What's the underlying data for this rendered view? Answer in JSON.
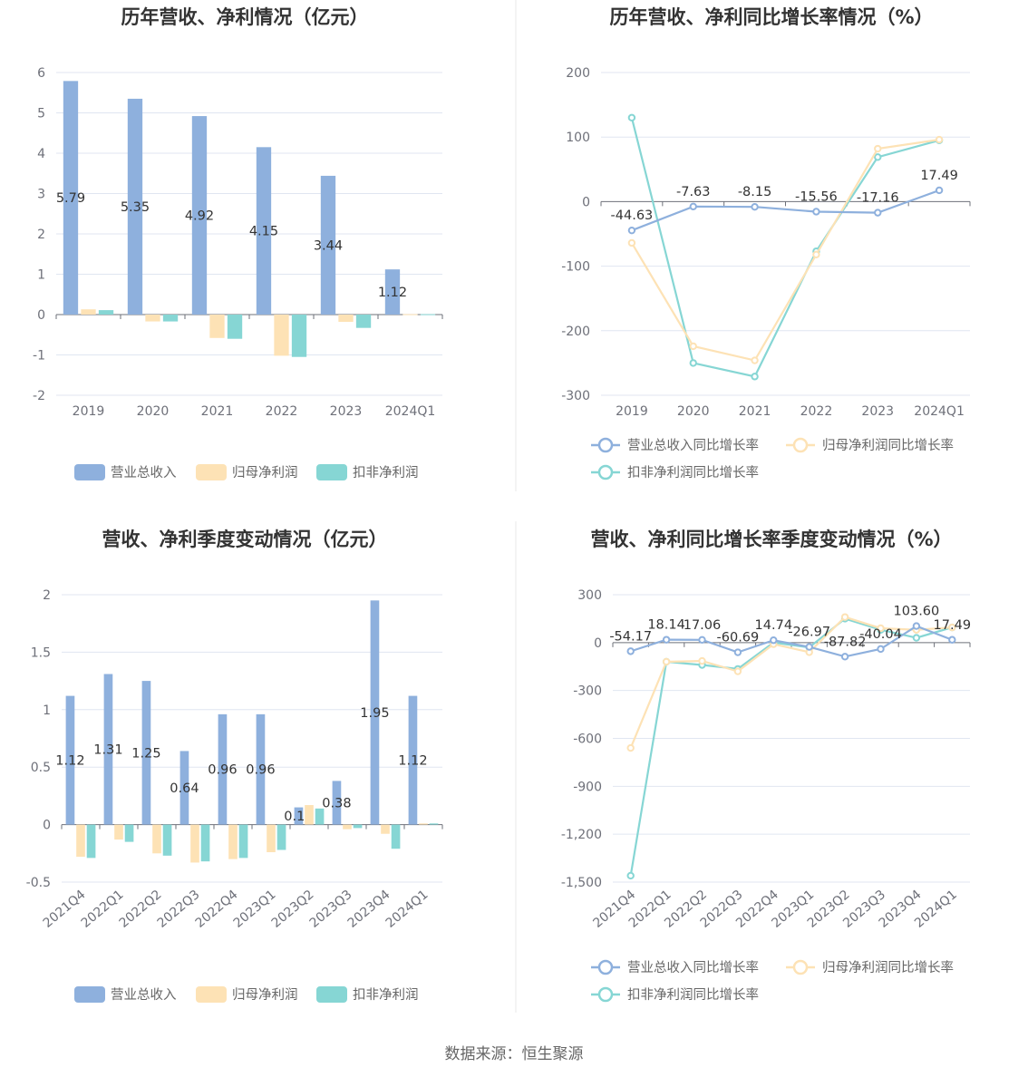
{
  "source": "数据来源：恒生聚源",
  "colors": {
    "revenue": "#8eb0dd",
    "profit": "#fde2b5",
    "nonrecurring": "#86d6d4",
    "grid": "#e0e6f1",
    "axis": "#6e7079"
  },
  "chart_data": [
    {
      "id": "annual_amount",
      "type": "bar",
      "title": "历年营收、净利情况（亿元）",
      "categories": [
        "2019",
        "2020",
        "2021",
        "2022",
        "2023",
        "2024Q1"
      ],
      "yticks": [
        -2,
        -1,
        0,
        1,
        2,
        3,
        4,
        5,
        6
      ],
      "ylim": [
        -2,
        6
      ],
      "series": [
        {
          "name": "营业总收入",
          "values": [
            5.79,
            5.35,
            4.92,
            4.15,
            3.44,
            1.12
          ],
          "labels": [
            "5.79",
            "5.35",
            "4.92",
            "4.15",
            "3.44",
            "1.12"
          ]
        },
        {
          "name": "归母净利润",
          "values": [
            0.13,
            -0.17,
            -0.58,
            -1.02,
            -0.18,
            0.01
          ]
        },
        {
          "name": "扣非净利润",
          "values": [
            0.11,
            -0.17,
            -0.6,
            -1.05,
            -0.33,
            0.01
          ]
        }
      ],
      "legend": [
        "营业总收入",
        "归母净利润",
        "扣非净利润"
      ]
    },
    {
      "id": "annual_growth",
      "type": "line",
      "title": "历年营收、净利同比增长率情况（%）",
      "categories": [
        "2019",
        "2020",
        "2021",
        "2022",
        "2023",
        "2024Q1"
      ],
      "yticks": [
        -300,
        -200,
        -100,
        0,
        100,
        200
      ],
      "ylim": [
        -300,
        200
      ],
      "series": [
        {
          "name": "营业总收入同比增长率",
          "values": [
            -44.63,
            -7.63,
            -8.15,
            -15.56,
            -17.16,
            17.49
          ],
          "labels": [
            "-44.63",
            "-7.63",
            "-8.15",
            "-15.56",
            "-17.16",
            "17.49"
          ]
        },
        {
          "name": "归母净利润同比增长率",
          "values": [
            -64,
            -224,
            -246,
            -82,
            82,
            96
          ]
        },
        {
          "name": "扣非净利润同比增长率",
          "values": [
            130,
            -250,
            -271,
            -77,
            69,
            95
          ]
        }
      ],
      "legend": [
        "营业总收入同比增长率",
        "归母净利润同比增长率",
        "扣非净利润同比增长率"
      ]
    },
    {
      "id": "quarterly_amount",
      "type": "bar",
      "title": "营收、净利季度变动情况（亿元）",
      "categories": [
        "2021Q4",
        "2022Q1",
        "2022Q2",
        "2022Q3",
        "2022Q4",
        "2023Q1",
        "2023Q2",
        "2023Q3",
        "2023Q4",
        "2024Q1"
      ],
      "yticks": [
        -0.5,
        0,
        0.5,
        1,
        1.5,
        2
      ],
      "ylim": [
        -0.5,
        2
      ],
      "series": [
        {
          "name": "营业总收入",
          "values": [
            1.12,
            1.31,
            1.25,
            0.64,
            0.96,
            0.96,
            0.15,
            0.38,
            1.95,
            1.12
          ],
          "labels": [
            "1.12",
            "1.31",
            "1.25",
            "0.64",
            "0.96",
            "0.96",
            "0.15",
            "0.38",
            "1.95",
            "1.12"
          ]
        },
        {
          "name": "归母净利润",
          "values": [
            -0.28,
            -0.13,
            -0.25,
            -0.33,
            -0.3,
            -0.24,
            0.17,
            -0.04,
            -0.08,
            0.01
          ]
        },
        {
          "name": "扣非净利润",
          "values": [
            -0.29,
            -0.15,
            -0.27,
            -0.32,
            -0.29,
            -0.22,
            0.14,
            -0.03,
            -0.21,
            0.01
          ]
        }
      ],
      "legend": [
        "营业总收入",
        "归母净利润",
        "扣非净利润"
      ]
    },
    {
      "id": "quarterly_growth",
      "type": "line",
      "title": "营收、净利同比增长率季度变动情况（%）",
      "categories": [
        "2021Q4",
        "2022Q1",
        "2022Q2",
        "2022Q3",
        "2022Q4",
        "2023Q1",
        "2023Q2",
        "2023Q3",
        "2023Q4",
        "2024Q1"
      ],
      "yticks": [
        -1500,
        -1200,
        -900,
        -600,
        -300,
        0,
        300
      ],
      "ylim": [
        -1500,
        300
      ],
      "series": [
        {
          "name": "营业总收入同比增长率",
          "values": [
            -54.17,
            18.14,
            17.06,
            -60.69,
            14.74,
            -26.97,
            -87.82,
            -40.04,
            103.6,
            17.49
          ],
          "labels": [
            "-54.17",
            "18.14",
            "17.06",
            "-60.69",
            "14.74",
            "-26.97",
            "-87.82",
            "-40.04",
            "103.60",
            "17.49"
          ]
        },
        {
          "name": "归母净利润同比增长率",
          "values": [
            -660,
            -120,
            -115,
            -180,
            -10,
            -60,
            160,
            90,
            80,
            95
          ]
        },
        {
          "name": "扣非净利润同比增长率",
          "values": [
            -1460,
            -120,
            -140,
            -165,
            0,
            -30,
            150,
            80,
            30,
            95
          ]
        }
      ],
      "legend": [
        "营业总收入同比增长率",
        "归母净利润同比增长率",
        "扣非净利润同比增长率"
      ]
    }
  ]
}
